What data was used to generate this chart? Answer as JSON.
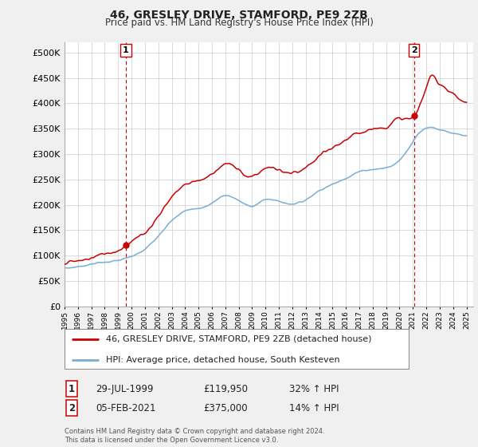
{
  "title": "46, GRESLEY DRIVE, STAMFORD, PE9 2ZB",
  "subtitle": "Price paid vs. HM Land Registry's House Price Index (HPI)",
  "legend_line1": "46, GRESLEY DRIVE, STAMFORD, PE9 2ZB (detached house)",
  "legend_line2": "HPI: Average price, detached house, South Kesteven",
  "annotation1_label": "1",
  "annotation1_date": "29-JUL-1999",
  "annotation1_price": "£119,950",
  "annotation1_hpi": "32% ↑ HPI",
  "annotation2_label": "2",
  "annotation2_date": "05-FEB-2021",
  "annotation2_price": "£375,000",
  "annotation2_hpi": "14% ↑ HPI",
  "footer": "Contains HM Land Registry data © Crown copyright and database right 2024.\nThis data is licensed under the Open Government Licence v3.0.",
  "hpi_color": "#7aadd4",
  "price_color": "#cc0000",
  "marker_color": "#cc0000",
  "vline_color": "#cc0000",
  "ylim": [
    0,
    520000
  ],
  "yticks": [
    0,
    50000,
    100000,
    150000,
    200000,
    250000,
    300000,
    350000,
    400000,
    450000,
    500000
  ],
  "background_color": "#f0f0f0",
  "plot_bg_color": "#ffffff",
  "sale1_year": 1999.58,
  "sale1_price": 119950,
  "sale2_year": 2021.09,
  "sale2_price": 375000
}
